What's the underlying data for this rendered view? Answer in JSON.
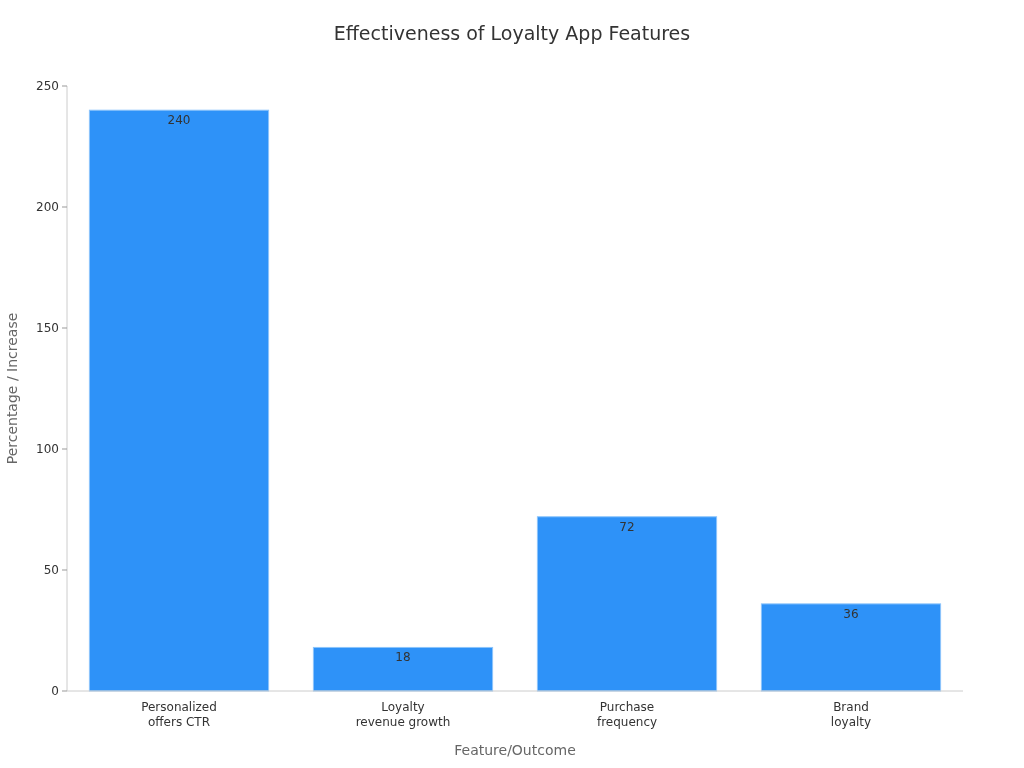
{
  "chart_data": {
    "type": "bar",
    "title": "Effectiveness of Loyalty App Features",
    "xlabel": "Feature/Outcome",
    "ylabel": "Percentage / Increase",
    "categories": [
      "Personalized\noffers CTR",
      "Loyalty\nrevenue growth",
      "Purchase\nfrequency",
      "Brand\nloyalty"
    ],
    "values": [
      240,
      18,
      72,
      36
    ],
    "color": "#2e92f8",
    "ylim": [
      0,
      250
    ],
    "yticks": [
      0,
      50,
      100,
      150,
      200,
      250
    ],
    "data_labels": true,
    "grid": false
  }
}
